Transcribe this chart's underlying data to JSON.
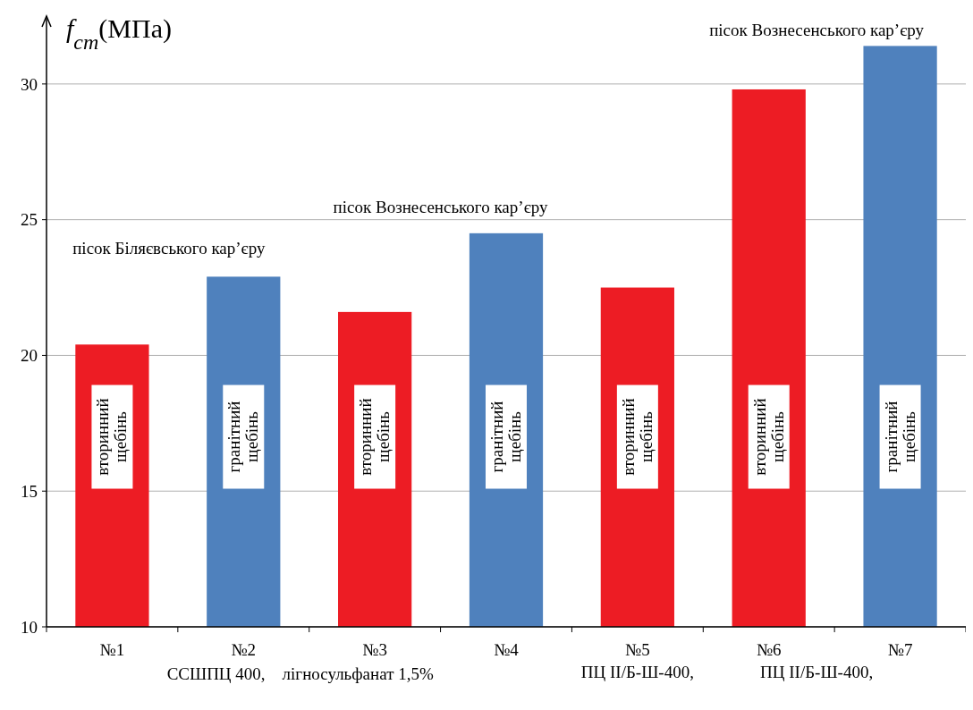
{
  "chart_data": {
    "type": "bar",
    "ylabel": "f$_{cm}$(МПа)",
    "categories": [
      "№1",
      "№2",
      "№3",
      "№4",
      "№5",
      "№6",
      "№7"
    ],
    "values": [
      20.4,
      22.9,
      21.6,
      24.5,
      22.5,
      29.8,
      31.4
    ],
    "colors": [
      "#ed1c24",
      "#4f81bd",
      "#ed1c24",
      "#4f81bd",
      "#ed1c24",
      "#ed1c24",
      "#4f81bd"
    ],
    "ylim": [
      10,
      32.5
    ],
    "yticks": [
      10,
      15,
      20,
      25,
      30
    ],
    "grid": "y",
    "annotations": [
      "пісок Біляєвського кар’єру",
      "пісок Вознесенського кар’єру",
      "пісок Вознесенського кар’єру",
      "ССШПЦ 400,    лігносульфанат 1,5%",
      "ПЦ II/Б-Ш-400,",
      "ПЦ II/Б-Ш-400,",
      "вторинний щебінь",
      "гранітний щебінь",
      "вторинний щебінь",
      "гранітний щебінь",
      "вторинний щебінь",
      "вторинний щебінь",
      "гранітний щебінь"
    ]
  }
}
